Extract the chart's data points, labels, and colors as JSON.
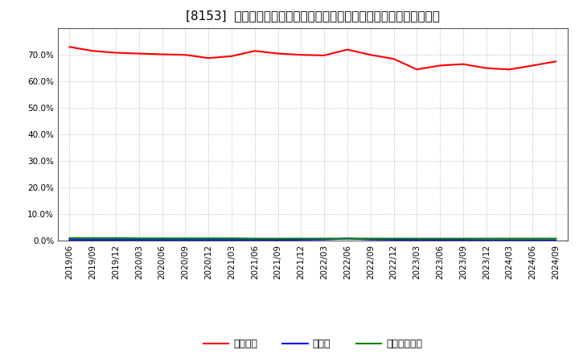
{
  "title": "[8153]  自己資本、のれん、繰延税金資産の総資産に対する比率の推移",
  "x_labels": [
    "2019/06",
    "2019/09",
    "2019/12",
    "2020/03",
    "2020/06",
    "2020/09",
    "2020/12",
    "2021/03",
    "2021/06",
    "2021/09",
    "2021/12",
    "2022/03",
    "2022/06",
    "2022/09",
    "2022/12",
    "2023/03",
    "2023/06",
    "2023/09",
    "2023/12",
    "2024/03",
    "2024/06",
    "2024/09"
  ],
  "jikoshihon": [
    73.0,
    71.5,
    70.8,
    70.5,
    70.2,
    70.0,
    68.8,
    69.5,
    71.5,
    70.5,
    70.0,
    69.8,
    72.0,
    70.0,
    68.5,
    64.5,
    66.0,
    66.5,
    65.0,
    64.5,
    66.0,
    67.5
  ],
  "noren": [
    0.3,
    0.3,
    0.3,
    0.3,
    0.3,
    0.3,
    0.3,
    0.3,
    0.3,
    0.3,
    0.4,
    0.5,
    0.8,
    0.5,
    0.4,
    0.3,
    0.3,
    0.3,
    0.2,
    0.2,
    0.2,
    0.2
  ],
  "kurinobezekin": [
    1.0,
    1.0,
    1.0,
    0.9,
    0.9,
    0.9,
    0.9,
    0.9,
    0.8,
    0.8,
    0.8,
    0.8,
    0.8,
    0.8,
    0.8,
    0.8,
    0.8,
    0.8,
    0.8,
    0.8,
    0.8,
    0.8
  ],
  "line_colors": {
    "jikoshihon": "#ff0000",
    "noren": "#0000ff",
    "kurinobezekin": "#008000"
  },
  "legend_labels": {
    "jikoshihon": "自己資本",
    "noren": "のれん",
    "kurinobezekin": "繰延税金資産"
  },
  "ylim": [
    0,
    80
  ],
  "yticks": [
    0,
    10,
    20,
    30,
    40,
    50,
    60,
    70
  ],
  "background_color": "#ffffff",
  "plot_bg_color": "#ffffff",
  "grid_color": "#aaaaaa",
  "title_fontsize": 11,
  "tick_fontsize": 7.5,
  "legend_fontsize": 9
}
